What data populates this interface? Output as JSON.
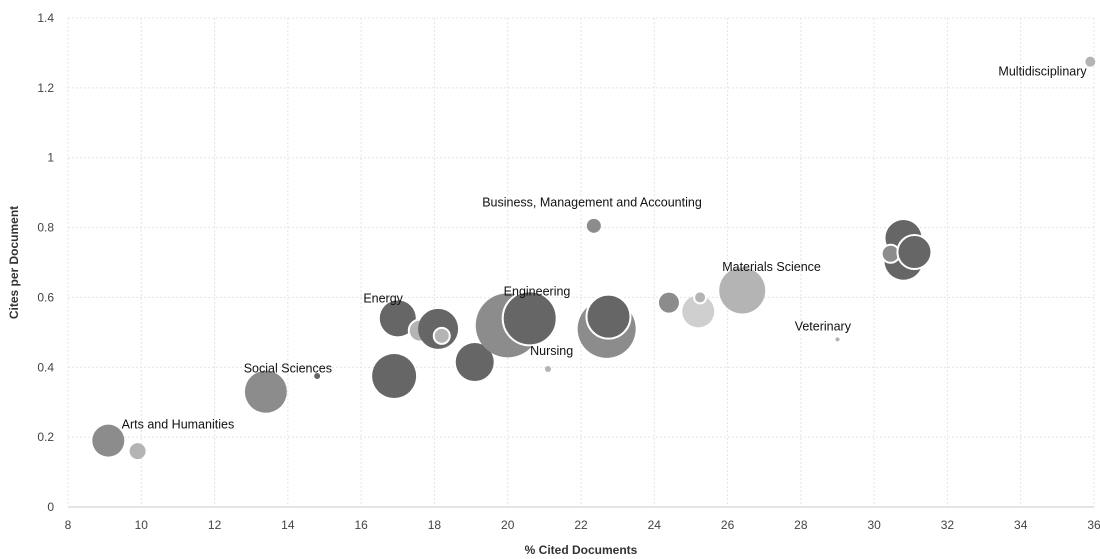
{
  "chart_data": {
    "type": "scatter",
    "title": "",
    "xlabel": "% Cited Documents",
    "ylabel": "Cites per Document",
    "xlim": [
      8,
      36
    ],
    "ylim": [
      0,
      1.4
    ],
    "xticks": [
      "8",
      "10",
      "12",
      "14",
      "16",
      "18",
      "20",
      "22",
      "24",
      "26",
      "28",
      "30",
      "32",
      "34",
      "36"
    ],
    "yticks": [
      "0",
      "0.2",
      "0.4",
      "0.6",
      "0.8",
      "1",
      "1.2",
      "1.4"
    ],
    "grid": true,
    "legend": "none",
    "colors": {
      "dark": "#666666",
      "mid": "#8c8c8c",
      "light": "#b4b4b4",
      "lighter": "#cfcfcf"
    },
    "points": [
      {
        "x": 9.1,
        "y": 0.19,
        "size": 16,
        "shade": "mid"
      },
      {
        "x": 9.9,
        "y": 0.16,
        "size": 8,
        "shade": "light"
      },
      {
        "x": 13.4,
        "y": 0.33,
        "size": 21,
        "shade": "mid"
      },
      {
        "x": 14.8,
        "y": 0.375,
        "size": 3,
        "shade": "dark"
      },
      {
        "x": 16.9,
        "y": 0.375,
        "size": 22,
        "shade": "dark"
      },
      {
        "x": 17.0,
        "y": 0.54,
        "size": 18,
        "shade": "dark"
      },
      {
        "x": 17.6,
        "y": 0.505,
        "size": 11,
        "shade": "light",
        "outline": true
      },
      {
        "x": 18.1,
        "y": 0.51,
        "size": 20,
        "shade": "dark"
      },
      {
        "x": 18.2,
        "y": 0.49,
        "size": 8,
        "shade": "light",
        "outline": true
      },
      {
        "x": 19.1,
        "y": 0.415,
        "size": 19,
        "shade": "dark"
      },
      {
        "x": 19.5,
        "y": 0.475,
        "size": 6,
        "shade": "lighter",
        "outline": true
      },
      {
        "x": 20.0,
        "y": 0.52,
        "size": 32,
        "shade": "mid"
      },
      {
        "x": 20.6,
        "y": 0.54,
        "size": 27,
        "shade": "dark",
        "outline": true
      },
      {
        "x": 21.1,
        "y": 0.395,
        "size": 3,
        "shade": "light"
      },
      {
        "x": 22.35,
        "y": 0.805,
        "size": 7,
        "shade": "mid"
      },
      {
        "x": 22.7,
        "y": 0.51,
        "size": 29,
        "shade": "mid"
      },
      {
        "x": 22.75,
        "y": 0.545,
        "size": 22,
        "shade": "dark",
        "outline": true
      },
      {
        "x": 24.4,
        "y": 0.585,
        "size": 10,
        "shade": "mid"
      },
      {
        "x": 25.2,
        "y": 0.56,
        "size": 16,
        "shade": "lighter"
      },
      {
        "x": 25.25,
        "y": 0.6,
        "size": 6,
        "shade": "light",
        "outline": true
      },
      {
        "x": 26.4,
        "y": 0.62,
        "size": 23,
        "shade": "light"
      },
      {
        "x": 29.0,
        "y": 0.48,
        "size": 2,
        "shade": "light"
      },
      {
        "x": 30.8,
        "y": 0.705,
        "size": 19,
        "shade": "dark"
      },
      {
        "x": 30.8,
        "y": 0.77,
        "size": 18,
        "shade": "dark"
      },
      {
        "x": 30.45,
        "y": 0.725,
        "size": 9,
        "shade": "mid",
        "outline": true
      },
      {
        "x": 31.1,
        "y": 0.73,
        "size": 17,
        "shade": "dark",
        "outline": true
      },
      {
        "x": 35.9,
        "y": 1.275,
        "size": 5,
        "shade": "light"
      }
    ],
    "annotations": [
      {
        "text": "Multidisciplinary",
        "x": 35.8,
        "y": 1.235,
        "anchor": "end"
      },
      {
        "text": "Business, Management and Accounting",
        "x": 22.3,
        "y": 0.86,
        "anchor": "middle"
      },
      {
        "text": "Materials Science",
        "x": 27.2,
        "y": 0.675,
        "anchor": "middle"
      },
      {
        "text": "Engineering",
        "x": 20.8,
        "y": 0.605,
        "anchor": "middle"
      },
      {
        "text": "Energy",
        "x": 16.6,
        "y": 0.585,
        "anchor": "middle"
      },
      {
        "text": "Veterinary",
        "x": 28.6,
        "y": 0.505,
        "anchor": "middle"
      },
      {
        "text": "Nursing",
        "x": 21.2,
        "y": 0.435,
        "anchor": "middle"
      },
      {
        "text": "Social Sciences",
        "x": 14.0,
        "y": 0.385,
        "anchor": "middle"
      },
      {
        "text": "Arts and Humanities",
        "x": 11.0,
        "y": 0.225,
        "anchor": "middle"
      }
    ]
  }
}
